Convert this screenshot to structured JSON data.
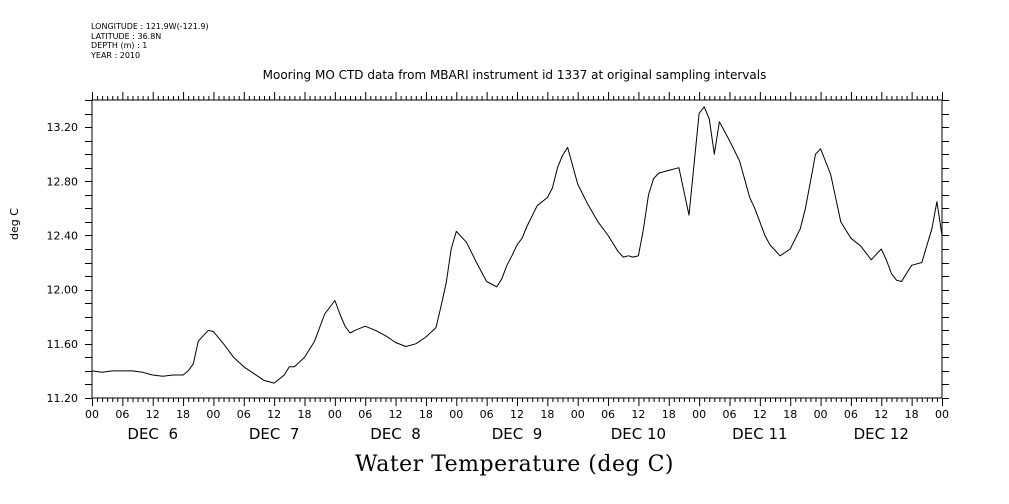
{
  "header": {
    "longitude": "LONGITUDE : 121.9W(-121.9)",
    "latitude": "LATITUDE : 36.8N",
    "depth": "DEPTH (m) : 1",
    "year": "YEAR : 2010"
  },
  "chart_data": {
    "type": "line",
    "title": "Mooring MO CTD data from MBARI instrument id 1337 at original sampling intervals",
    "xlabel": "Water Temperature (deg C)",
    "ylabel": "deg C",
    "xlim": [
      0,
      168
    ],
    "ylim": [
      11.2,
      13.4
    ],
    "yticks": [
      11.2,
      11.6,
      12.0,
      12.4,
      12.8,
      13.2
    ],
    "ytick_labels": [
      "11.20",
      "11.60",
      "12.00",
      "12.40",
      "12.80",
      "13.20"
    ],
    "hour_tick_labels": [
      "00",
      "06",
      "12",
      "18",
      "00",
      "06",
      "12",
      "18",
      "00",
      "06",
      "12",
      "18",
      "00",
      "06",
      "12",
      "18",
      "00",
      "06",
      "12",
      "18",
      "00",
      "06",
      "12",
      "18",
      "00",
      "06",
      "12",
      "18",
      "00"
    ],
    "day_labels": [
      "DEC  6",
      "DEC  7",
      "DEC  8",
      "DEC  9",
      "DEC 10",
      "DEC 11",
      "DEC 12"
    ],
    "grid": false,
    "series": [
      {
        "name": "",
        "x": [
          0,
          2,
          4,
          6,
          8,
          10,
          12,
          14,
          16,
          18,
          19,
          20,
          21,
          22,
          23,
          24,
          26,
          28,
          30,
          32,
          34,
          36,
          38,
          39,
          40,
          42,
          44,
          46,
          48,
          49,
          50,
          51,
          52,
          54,
          56,
          58,
          60,
          62,
          64,
          66,
          68,
          69,
          70,
          71,
          72,
          74,
          76,
          78,
          80,
          81,
          82,
          83,
          84,
          85,
          86,
          88,
          90,
          91,
          92,
          93,
          94,
          96,
          98,
          100,
          102,
          104,
          105,
          106,
          107,
          108,
          109,
          110,
          111,
          112,
          114,
          116,
          118,
          120,
          121,
          122,
          123,
          124,
          126,
          128,
          130,
          131,
          132,
          133,
          134,
          136,
          138,
          140,
          141,
          142,
          143,
          144,
          146,
          148,
          150,
          152,
          154,
          156,
          157,
          158,
          159,
          160,
          162,
          164,
          166,
          167,
          168
        ],
        "y": [
          11.4,
          11.39,
          11.4,
          11.4,
          11.4,
          11.39,
          11.37,
          11.36,
          11.37,
          11.37,
          11.4,
          11.45,
          11.62,
          11.66,
          11.7,
          11.69,
          11.6,
          11.5,
          11.43,
          11.38,
          11.33,
          11.31,
          11.37,
          11.43,
          11.43,
          11.5,
          11.62,
          11.82,
          11.92,
          11.82,
          11.73,
          11.68,
          11.7,
          11.73,
          11.7,
          11.66,
          11.61,
          11.58,
          11.6,
          11.65,
          11.72,
          11.88,
          12.05,
          12.3,
          12.43,
          12.35,
          12.2,
          12.06,
          12.02,
          12.08,
          12.18,
          12.25,
          12.33,
          12.38,
          12.47,
          12.62,
          12.68,
          12.75,
          12.9,
          12.99,
          13.05,
          12.78,
          12.63,
          12.5,
          12.4,
          12.28,
          12.24,
          12.25,
          12.24,
          12.25,
          12.45,
          12.7,
          12.82,
          12.86,
          12.88,
          12.9,
          12.55,
          13.3,
          13.35,
          13.26,
          13.0,
          13.24,
          13.1,
          12.95,
          12.68,
          12.6,
          12.5,
          12.4,
          12.33,
          12.25,
          12.3,
          12.45,
          12.6,
          12.8,
          13.0,
          13.04,
          12.85,
          12.5,
          12.38,
          12.32,
          12.22,
          12.3,
          12.22,
          12.12,
          12.07,
          12.06,
          12.18,
          12.2,
          12.45,
          12.65,
          12.4
        ]
      }
    ]
  }
}
